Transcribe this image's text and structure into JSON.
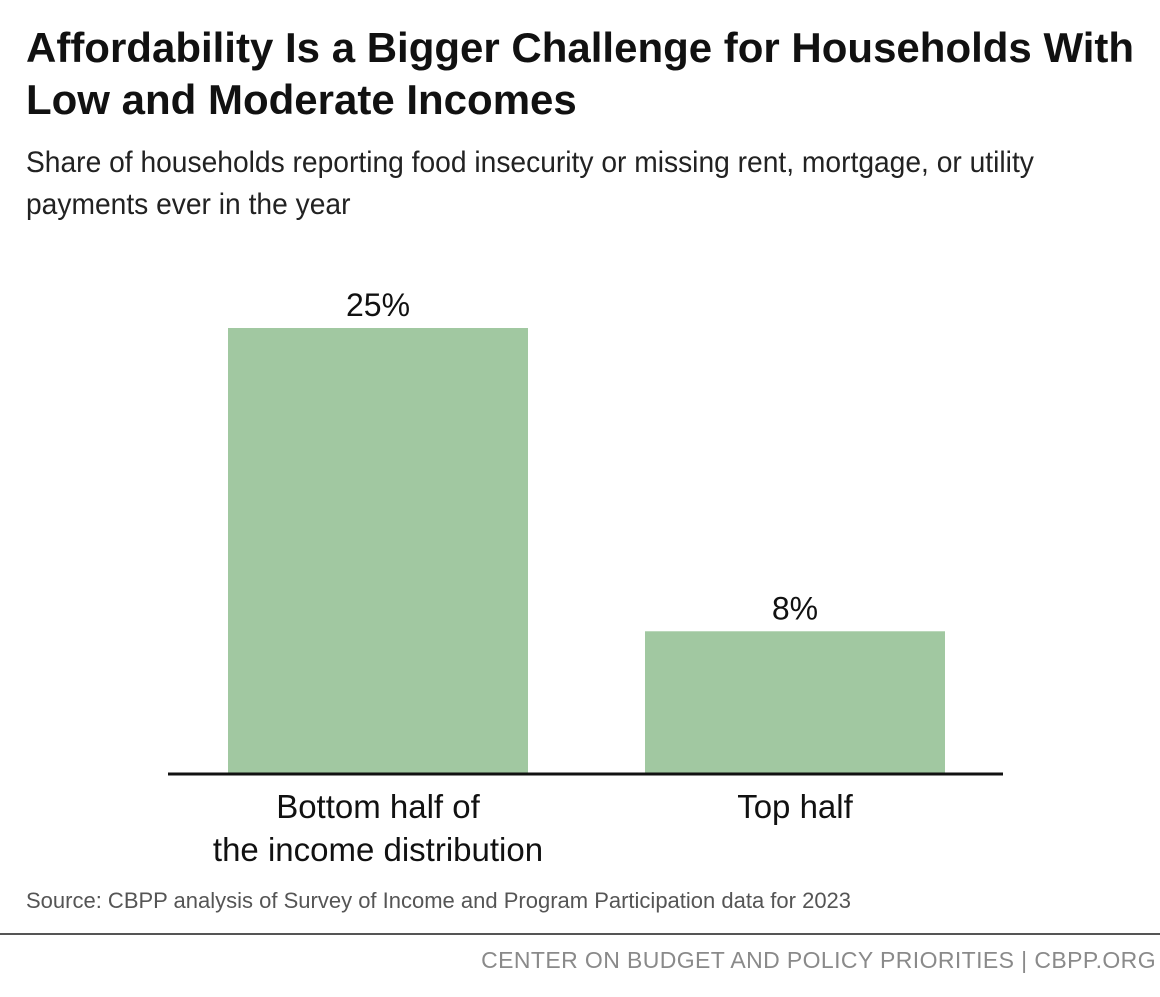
{
  "header": {
    "title": "Affordability Is a Bigger Challenge for Households With Low and Moderate Incomes",
    "subtitle": "Share of households reporting food insecurity or missing rent, mortgage, or utility payments ever in the year"
  },
  "chart_data": {
    "type": "bar",
    "categories": [
      [
        "Bottom half of",
        "the income distribution"
      ],
      [
        "Top half"
      ]
    ],
    "values": [
      25,
      8
    ],
    "value_labels": [
      "25%",
      "8%"
    ],
    "ylim": [
      0,
      25
    ],
    "grid": false,
    "legend": "none",
    "bar_color": "#a1c8a1",
    "axis_color": "#111111"
  },
  "footer": {
    "source": "Source: CBPP analysis of Survey of Income and Program Participation data for 2023",
    "credit": "CENTER ON BUDGET AND POLICY PRIORITIES | CBPP.ORG"
  }
}
